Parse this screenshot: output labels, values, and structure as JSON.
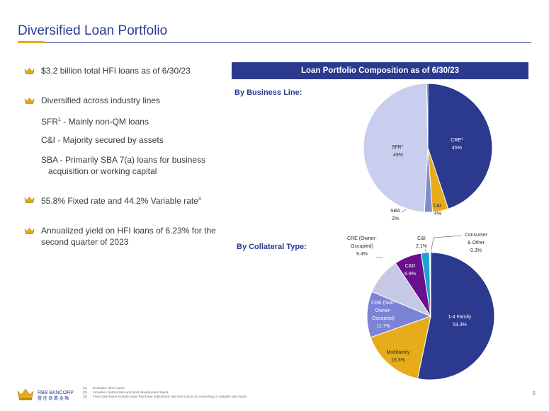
{
  "page": {
    "title": "Diversified Loan Portfolio",
    "page_number": "6"
  },
  "bullets": {
    "b1": "$3.2 billion total HFI loans as of 6/30/23",
    "b2": "Diversified across industry lines",
    "b2_sub1_pre": "SFR",
    "b2_sub1_sup": "1",
    "b2_sub1_post": " - Mainly non-QM loans",
    "b2_sub2": "C&I - Majority secured by assets",
    "b2_sub3_line1": "SBA - Primarily SBA 7(a) loans for business",
    "b2_sub3_line2": "acquisition or working capital",
    "b3_pre": "55.8% Fixed rate and 44.2% Variable rate",
    "b3_sup": "3",
    "b4": "Annualized yield on HFI loans of 6.23% for the second quarter of 2023"
  },
  "colors": {
    "navy": "#2b3a8f",
    "gold": "#e6ac1a",
    "lavender": "#c9cdee",
    "periwinkle": "#7a83d6",
    "purple": "#6a0f8e",
    "cyan": "#1ba3d6",
    "steel": "#7f8fc6",
    "light_purple": "#c7c8e3"
  },
  "chart_data": [
    {
      "type": "pie",
      "title": "Loan Portfolio Composition as of 6/30/23",
      "subtitle": "By Business Line:",
      "series": [
        {
          "label": "CRE",
          "sup": "2",
          "value": 45,
          "value_label": "45%",
          "color": "#2b3a8f"
        },
        {
          "label": "C&I",
          "sup": "",
          "value": 4,
          "value_label": "4%",
          "color": "#e6ac1a"
        },
        {
          "label": "SBA",
          "sup": "",
          "value": 2,
          "value_label": "2%",
          "color": "#7f8fc6"
        },
        {
          "label": "SFR",
          "sup": "1",
          "value": 49,
          "value_label": "49%",
          "color": "#c9cdee"
        },
        {
          "label": "",
          "sup": "",
          "value": 0.3,
          "value_label": "",
          "color": "#6a0f8e"
        }
      ]
    },
    {
      "type": "pie",
      "subtitle": "By Collateral Type:",
      "series": [
        {
          "label": "1-4 Family",
          "value": 53.3,
          "value_label": "53.3%",
          "color": "#2b3a8f"
        },
        {
          "label": "Multifamily",
          "value": 16.3,
          "value_label": "16.3%",
          "color": "#e6ac1a"
        },
        {
          "label": "CRE (Non-Owner-Occupied)",
          "value": 11.7,
          "value_label": "11.7%",
          "color": "#7a83d6"
        },
        {
          "label": "CRE (Owner-Occupied)",
          "value": 9.4,
          "value_label": "9.4%",
          "color": "#c7c8e3"
        },
        {
          "label": "C&D",
          "value": 6.9,
          "value_label": "6.9%",
          "color": "#6a0f8e"
        },
        {
          "label": "C&I",
          "value": 2.1,
          "value_label": "2.1%",
          "color": "#1ba3d6"
        },
        {
          "label": "Consumer & Other",
          "value": 0.3,
          "value_label": "0.3%",
          "color": "#ffffff"
        }
      ]
    }
  ],
  "labels": {
    "bl_cre": "CRE",
    "bl_cre_sup": "2",
    "bl_cre_val": "45%",
    "bl_ci": "C&I",
    "bl_ci_val": "4%",
    "bl_sba": "SBA",
    "bl_sba_val": "2%",
    "bl_sfr": "SFR",
    "bl_sfr_sup": "1",
    "bl_sfr_val": "49%",
    "ct_14": "1-4 Family",
    "ct_14_val": "53.3%",
    "ct_mf": "Multifamily",
    "ct_mf_val": "16.3%",
    "ct_non_l1": "CRE (Non-",
    "ct_non_l2": "Owner-",
    "ct_non_l3": "Occupied)",
    "ct_non_val": "11.7%",
    "ct_own_l1": "CRE (Owner-",
    "ct_own_l2": "Occupied)",
    "ct_own_val": "9.4%",
    "ct_cd": "C&D",
    "ct_cd_val": "6.9%",
    "ct_ci": "C&I",
    "ct_ci_val": "2.1%",
    "ct_con_l1": "Consumer",
    "ct_con_l2": "& Other",
    "ct_con_val": "0.3%"
  },
  "footer": {
    "company": "RBB BANCORP",
    "company_cn": "豐 佳 商 業 金 融",
    "notes": [
      {
        "num": "(1)",
        "text": "Excludes HFS Loans"
      },
      {
        "num": "(2)",
        "text": "Includes construction and land development loans"
      },
      {
        "num": "(3)",
        "text": "Fixed rate loans include loans that have initial fixed rate terms prior to converting to variable rate loans"
      }
    ]
  }
}
